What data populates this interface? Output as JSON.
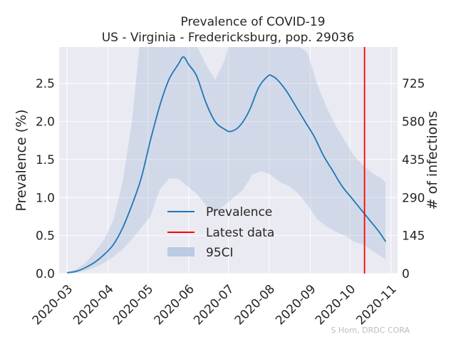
{
  "chart_data": {
    "type": "line",
    "title": "Prevalence of COVID-19",
    "subtitle": "US - Virginia - Fredericksburg, pop. 29036",
    "ylabel": "Prevalence (%)",
    "ylabel_right": "# of infections",
    "x_ticks": [
      "2020-03",
      "2020-04",
      "2020-05",
      "2020-06",
      "2020-07",
      "2020-08",
      "2020-09",
      "2020-10",
      "2020-11"
    ],
    "y_ticks": [
      "0.0",
      "0.5",
      "1.0",
      "1.5",
      "2.0",
      "2.5"
    ],
    "y_right_ticks": [
      "0",
      "145",
      "290",
      "435",
      "580",
      "725"
    ],
    "ylim": [
      0,
      2.98
    ],
    "xlim": [
      "2020-02-24",
      "2020-11-06"
    ],
    "grid": true,
    "legend_position": "lower-center",
    "series": [
      {
        "name": "Prevalence",
        "color": "#1f77b4",
        "x": [
          "2020-03-01",
          "2020-03-08",
          "2020-03-15",
          "2020-03-22",
          "2020-03-29",
          "2020-04-05",
          "2020-04-12",
          "2020-04-19",
          "2020-04-26",
          "2020-05-03",
          "2020-05-10",
          "2020-05-17",
          "2020-05-24",
          "2020-05-28",
          "2020-06-01",
          "2020-06-07",
          "2020-06-14",
          "2020-06-21",
          "2020-06-28",
          "2020-07-03",
          "2020-07-10",
          "2020-07-17",
          "2020-07-24",
          "2020-07-31",
          "2020-08-03",
          "2020-08-07",
          "2020-08-14",
          "2020-08-21",
          "2020-08-28",
          "2020-09-04",
          "2020-09-11",
          "2020-09-18",
          "2020-09-25",
          "2020-10-02",
          "2020-10-09",
          "2020-10-16",
          "2020-10-23",
          "2020-10-28"
        ],
        "y": [
          0.01,
          0.03,
          0.08,
          0.15,
          0.25,
          0.38,
          0.6,
          0.9,
          1.25,
          1.75,
          2.2,
          2.55,
          2.75,
          2.85,
          2.75,
          2.6,
          2.25,
          2.0,
          1.9,
          1.87,
          1.95,
          2.15,
          2.45,
          2.6,
          2.6,
          2.55,
          2.4,
          2.2,
          2.0,
          1.8,
          1.55,
          1.35,
          1.15,
          1.0,
          0.85,
          0.7,
          0.55,
          0.42
        ]
      },
      {
        "name": "95CI",
        "color": "#9ab5d8",
        "x": [
          "2020-03-01",
          "2020-03-08",
          "2020-03-15",
          "2020-03-22",
          "2020-03-29",
          "2020-04-05",
          "2020-04-12",
          "2020-04-19",
          "2020-04-26",
          "2020-05-03",
          "2020-05-10",
          "2020-05-17",
          "2020-05-24",
          "2020-05-31",
          "2020-06-07",
          "2020-06-14",
          "2020-06-21",
          "2020-06-28",
          "2020-07-05",
          "2020-07-12",
          "2020-07-19",
          "2020-07-26",
          "2020-08-02",
          "2020-08-09",
          "2020-08-16",
          "2020-08-23",
          "2020-08-30",
          "2020-09-06",
          "2020-09-13",
          "2020-09-20",
          "2020-09-27",
          "2020-10-04",
          "2020-10-11",
          "2020-10-18",
          "2020-10-25",
          "2020-10-28"
        ],
        "lower": [
          0.005,
          0.01,
          0.04,
          0.08,
          0.14,
          0.22,
          0.32,
          0.45,
          0.6,
          0.75,
          1.1,
          1.25,
          1.25,
          1.15,
          1.05,
          0.9,
          0.8,
          0.9,
          1.0,
          1.1,
          1.3,
          1.35,
          1.3,
          1.2,
          1.15,
          1.05,
          0.9,
          0.72,
          0.62,
          0.55,
          0.5,
          0.42,
          0.38,
          0.3,
          0.22,
          0.18
        ],
        "upper": [
          0.02,
          0.06,
          0.14,
          0.28,
          0.45,
          0.7,
          1.2,
          2.0,
          3.2,
          3.5,
          3.6,
          3.6,
          3.6,
          3.4,
          3.0,
          2.75,
          2.55,
          2.8,
          3.2,
          3.5,
          3.5,
          3.4,
          3.3,
          3.2,
          3.1,
          3.0,
          2.9,
          2.5,
          2.2,
          1.95,
          1.75,
          1.55,
          1.42,
          1.32,
          1.25,
          1.2
        ]
      },
      {
        "name": "Latest data",
        "color": "#ff0000",
        "x": [
          "2020-10-12"
        ]
      }
    ]
  },
  "credit": "S Horn, DRDC CORA"
}
